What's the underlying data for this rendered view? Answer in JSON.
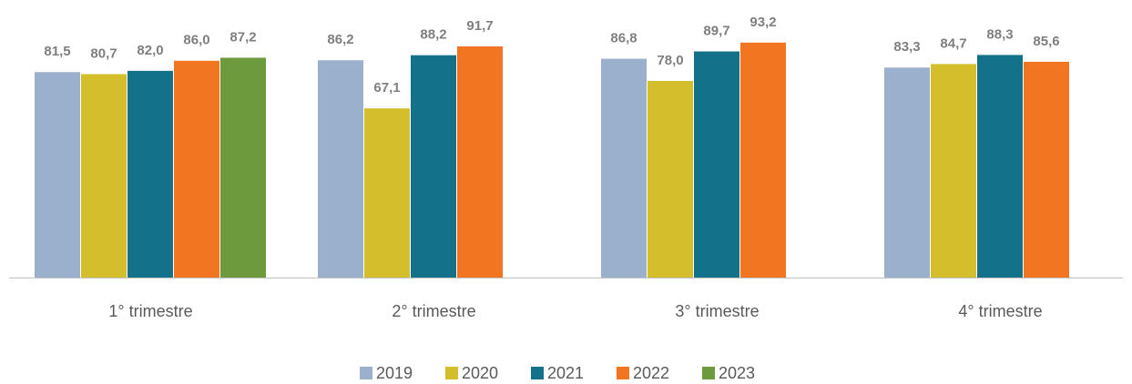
{
  "chart_data": {
    "type": "bar",
    "categories": [
      "1° trimestre",
      "2° trimestre",
      "3° trimestre",
      "4° trimestre"
    ],
    "series": [
      {
        "name": "2019",
        "color": "#9bb0cc",
        "values": [
          81.5,
          86.2,
          86.8,
          83.3
        ],
        "value_labels": [
          "81,5",
          "86,2",
          "86,8",
          "83,3"
        ]
      },
      {
        "name": "2020",
        "color": "#d4be2c",
        "values": [
          80.7,
          67.1,
          78.0,
          84.7
        ],
        "value_labels": [
          "80,7",
          "67,1",
          "78,0",
          "84,7"
        ]
      },
      {
        "name": "2021",
        "color": "#13718a",
        "values": [
          82.0,
          88.2,
          89.7,
          88.3
        ],
        "value_labels": [
          "82,0",
          "88,2",
          "89,7",
          "88,3"
        ]
      },
      {
        "name": "2022",
        "color": "#f27622",
        "values": [
          86.0,
          91.7,
          93.2,
          85.6
        ],
        "value_labels": [
          "86,0",
          "91,7",
          "93,2",
          "85,6"
        ]
      },
      {
        "name": "2023",
        "color": "#6e9a3e",
        "values": [
          87.2,
          null,
          null,
          null
        ],
        "value_labels": [
          "87,2",
          null,
          null,
          null
        ]
      }
    ],
    "ylim": [
      0,
      100
    ],
    "legend": "bottom"
  }
}
